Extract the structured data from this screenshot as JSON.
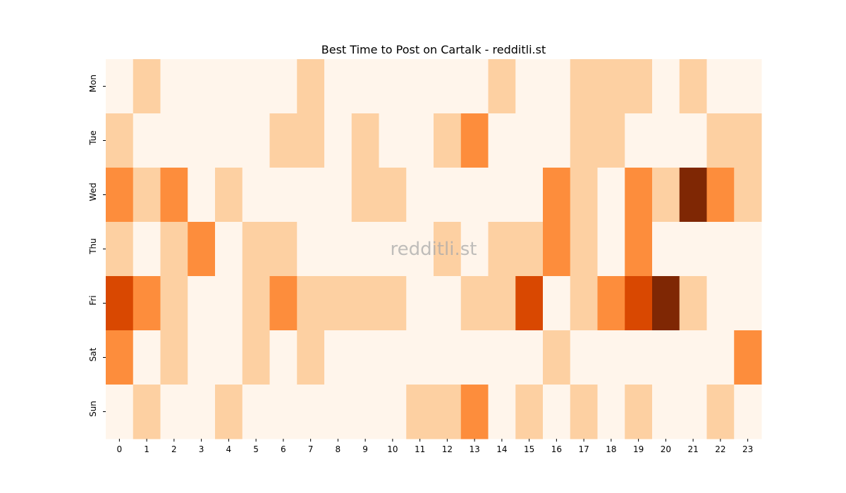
{
  "chart_data": {
    "type": "heatmap",
    "title": "Best Time to Post on Cartalk - redditli.st",
    "watermark": "redditli.st",
    "x": [
      0,
      1,
      2,
      3,
      4,
      5,
      6,
      7,
      8,
      9,
      10,
      11,
      12,
      13,
      14,
      15,
      16,
      17,
      18,
      19,
      20,
      21,
      22,
      23
    ],
    "y": [
      "Mon",
      "Tue",
      "Wed",
      "Thu",
      "Fri",
      "Sat",
      "Sun"
    ],
    "palette": [
      "#fff5eb",
      "#fdd0a2",
      "#fd8d3c",
      "#d94801",
      "#7f2704"
    ],
    "values": [
      [
        0,
        1,
        0,
        0,
        0,
        0,
        0,
        1,
        0,
        0,
        0,
        0,
        0,
        0,
        1,
        0,
        0,
        1,
        1,
        1,
        0,
        1,
        0,
        0
      ],
      [
        1,
        0,
        0,
        0,
        0,
        0,
        1,
        1,
        0,
        1,
        0,
        0,
        1,
        2,
        0,
        0,
        0,
        1,
        1,
        0,
        0,
        0,
        1,
        1
      ],
      [
        2,
        1,
        2,
        0,
        1,
        0,
        0,
        0,
        0,
        1,
        1,
        0,
        0,
        0,
        0,
        0,
        2,
        1,
        0,
        2,
        1,
        4,
        2,
        1
      ],
      [
        1,
        0,
        1,
        2,
        0,
        1,
        1,
        0,
        0,
        0,
        0,
        0,
        1,
        0,
        1,
        1,
        2,
        1,
        0,
        2,
        0,
        0,
        0,
        0
      ],
      [
        3,
        2,
        1,
        0,
        0,
        1,
        2,
        1,
        1,
        1,
        1,
        0,
        0,
        1,
        1,
        3,
        0,
        1,
        2,
        3,
        4,
        1,
        0,
        0
      ],
      [
        2,
        0,
        1,
        0,
        0,
        1,
        0,
        1,
        0,
        0,
        0,
        0,
        0,
        0,
        0,
        0,
        1,
        0,
        0,
        0,
        0,
        0,
        0,
        2
      ],
      [
        0,
        1,
        0,
        0,
        1,
        0,
        0,
        0,
        0,
        0,
        0,
        1,
        1,
        2,
        0,
        1,
        0,
        1,
        0,
        1,
        0,
        0,
        1,
        0
      ]
    ]
  }
}
